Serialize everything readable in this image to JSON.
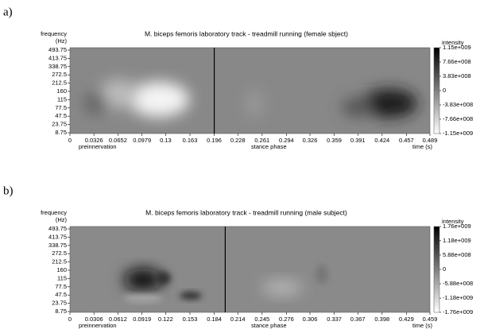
{
  "chart_data": [
    {
      "type": "heatmap",
      "panel_label": "a)",
      "title": "M. biceps femoris laboratory track - treadmill running (female sbject)",
      "y_label": "frequency",
      "y_unit": "(Hz)",
      "frequency_bands": [
        493.75,
        413.75,
        338.75,
        272.5,
        212.5,
        160,
        115,
        77.5,
        47.5,
        23.75,
        8.75
      ],
      "xlim": [
        0,
        0.489
      ],
      "xticks": [
        0,
        0.0326,
        0.0652,
        0.0979,
        0.13,
        0.163,
        0.196,
        0.228,
        0.261,
        0.294,
        0.326,
        0.359,
        0.391,
        0.424,
        0.457,
        0.489
      ],
      "x_label": "time (s)",
      "phase_boundary": 0.196,
      "phase_labels": [
        "preinnervation",
        "stance phase"
      ],
      "colorbar_label": "intensity",
      "clim": [
        -1150000000,
        1150000000
      ],
      "colorbar_ticks": [
        {
          "value": 1150000000,
          "label": "1.15e+009"
        },
        {
          "value": 766000000,
          "label": "7.66e+008"
        },
        {
          "value": 383000000,
          "label": "3.83e+008"
        },
        0,
        {
          "value": -383000000,
          "label": "-3.83e+008"
        },
        {
          "value": -766000000,
          "label": "-7.66e+008"
        },
        {
          "value": -1150000000,
          "label": "-1.15e+009"
        }
      ]
    },
    {
      "type": "heatmap",
      "panel_label": "b)",
      "title": "M. biceps femoris laboratory track - treadmill running (male subject)",
      "y_label": "frequency",
      "y_unit": "(Hz)",
      "frequency_bands": [
        493.75,
        413.75,
        338.75,
        272.5,
        212.5,
        160,
        115,
        77.5,
        47.5,
        23.75,
        8.75
      ],
      "xlim": [
        0,
        0.459
      ],
      "xticks": [
        0,
        0.0306,
        0.0612,
        0.0919,
        0.122,
        0.153,
        0.184,
        0.214,
        0.245,
        0.276,
        0.306,
        0.337,
        0.367,
        0.398,
        0.429,
        0.459
      ],
      "x_label": "time (s)",
      "phase_boundary": 0.198,
      "phase_labels": [
        "preinnervation",
        "stance phase"
      ],
      "colorbar_label": "intensity",
      "clim": [
        -1760000000,
        1760000000
      ],
      "colorbar_ticks": [
        {
          "value": 1760000000,
          "label": "1.76e+009"
        },
        {
          "value": 1180000000,
          "label": "1.18e+009"
        },
        {
          "value": 588000000,
          "label": "5.88e+008"
        },
        0,
        {
          "value": -588000000,
          "label": "-5.88e+008"
        },
        {
          "value": -1180000000,
          "label": "-1.18e+009"
        },
        {
          "value": -1760000000,
          "label": "-1.76e+009"
        }
      ]
    }
  ]
}
